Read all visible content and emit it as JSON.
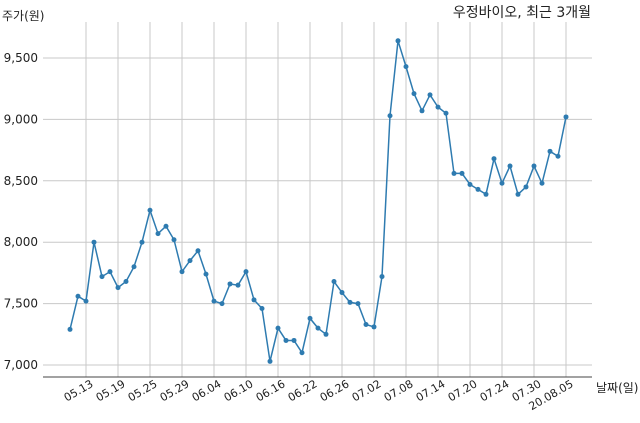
{
  "chart_data": {
    "type": "line",
    "title": "우정바이오, 최근 3개월",
    "ylabel": "주가(원)",
    "xlabel": "날짜(일)",
    "ylim": [
      6950,
      9800
    ],
    "grid": true,
    "y_ticks": [
      "7,000",
      "7,500",
      "8,000",
      "8,500",
      "9,000",
      "9,500"
    ],
    "y_tick_values": [
      7000,
      7500,
      8000,
      8500,
      9000,
      9500
    ],
    "x_ticks": [
      "05.13",
      "05.19",
      "05.25",
      "05.29",
      "06.04",
      "06.10",
      "06.16",
      "06.22",
      "06.26",
      "07.02",
      "07.08",
      "07.14",
      "07.20",
      "07.24",
      "07.30",
      "20.08.05"
    ],
    "x_tick_index": [
      2,
      6,
      10,
      14,
      18,
      22,
      26,
      30,
      34,
      38,
      42,
      46,
      50,
      54,
      58,
      62
    ],
    "series": [
      {
        "values": [
          7290,
          7560,
          7520,
          8000,
          7720,
          7760,
          7630,
          7680,
          7800,
          8000,
          8260,
          8070,
          8130,
          8020,
          7760,
          7850,
          7930,
          7740,
          7520,
          7500,
          7660,
          7650,
          7760,
          7530,
          7460,
          7030,
          7300,
          7200,
          7200,
          7100,
          7380,
          7300,
          7250,
          7680,
          7590,
          7510,
          7500,
          7330,
          7310,
          7720,
          9030,
          9640,
          9430,
          9210,
          9070,
          9200,
          9100,
          9050,
          8560,
          8560,
          8470,
          8430,
          8390,
          8680,
          8480,
          8620,
          8390,
          8450,
          8620,
          8480,
          8740,
          8700,
          9020
        ]
      }
    ]
  }
}
